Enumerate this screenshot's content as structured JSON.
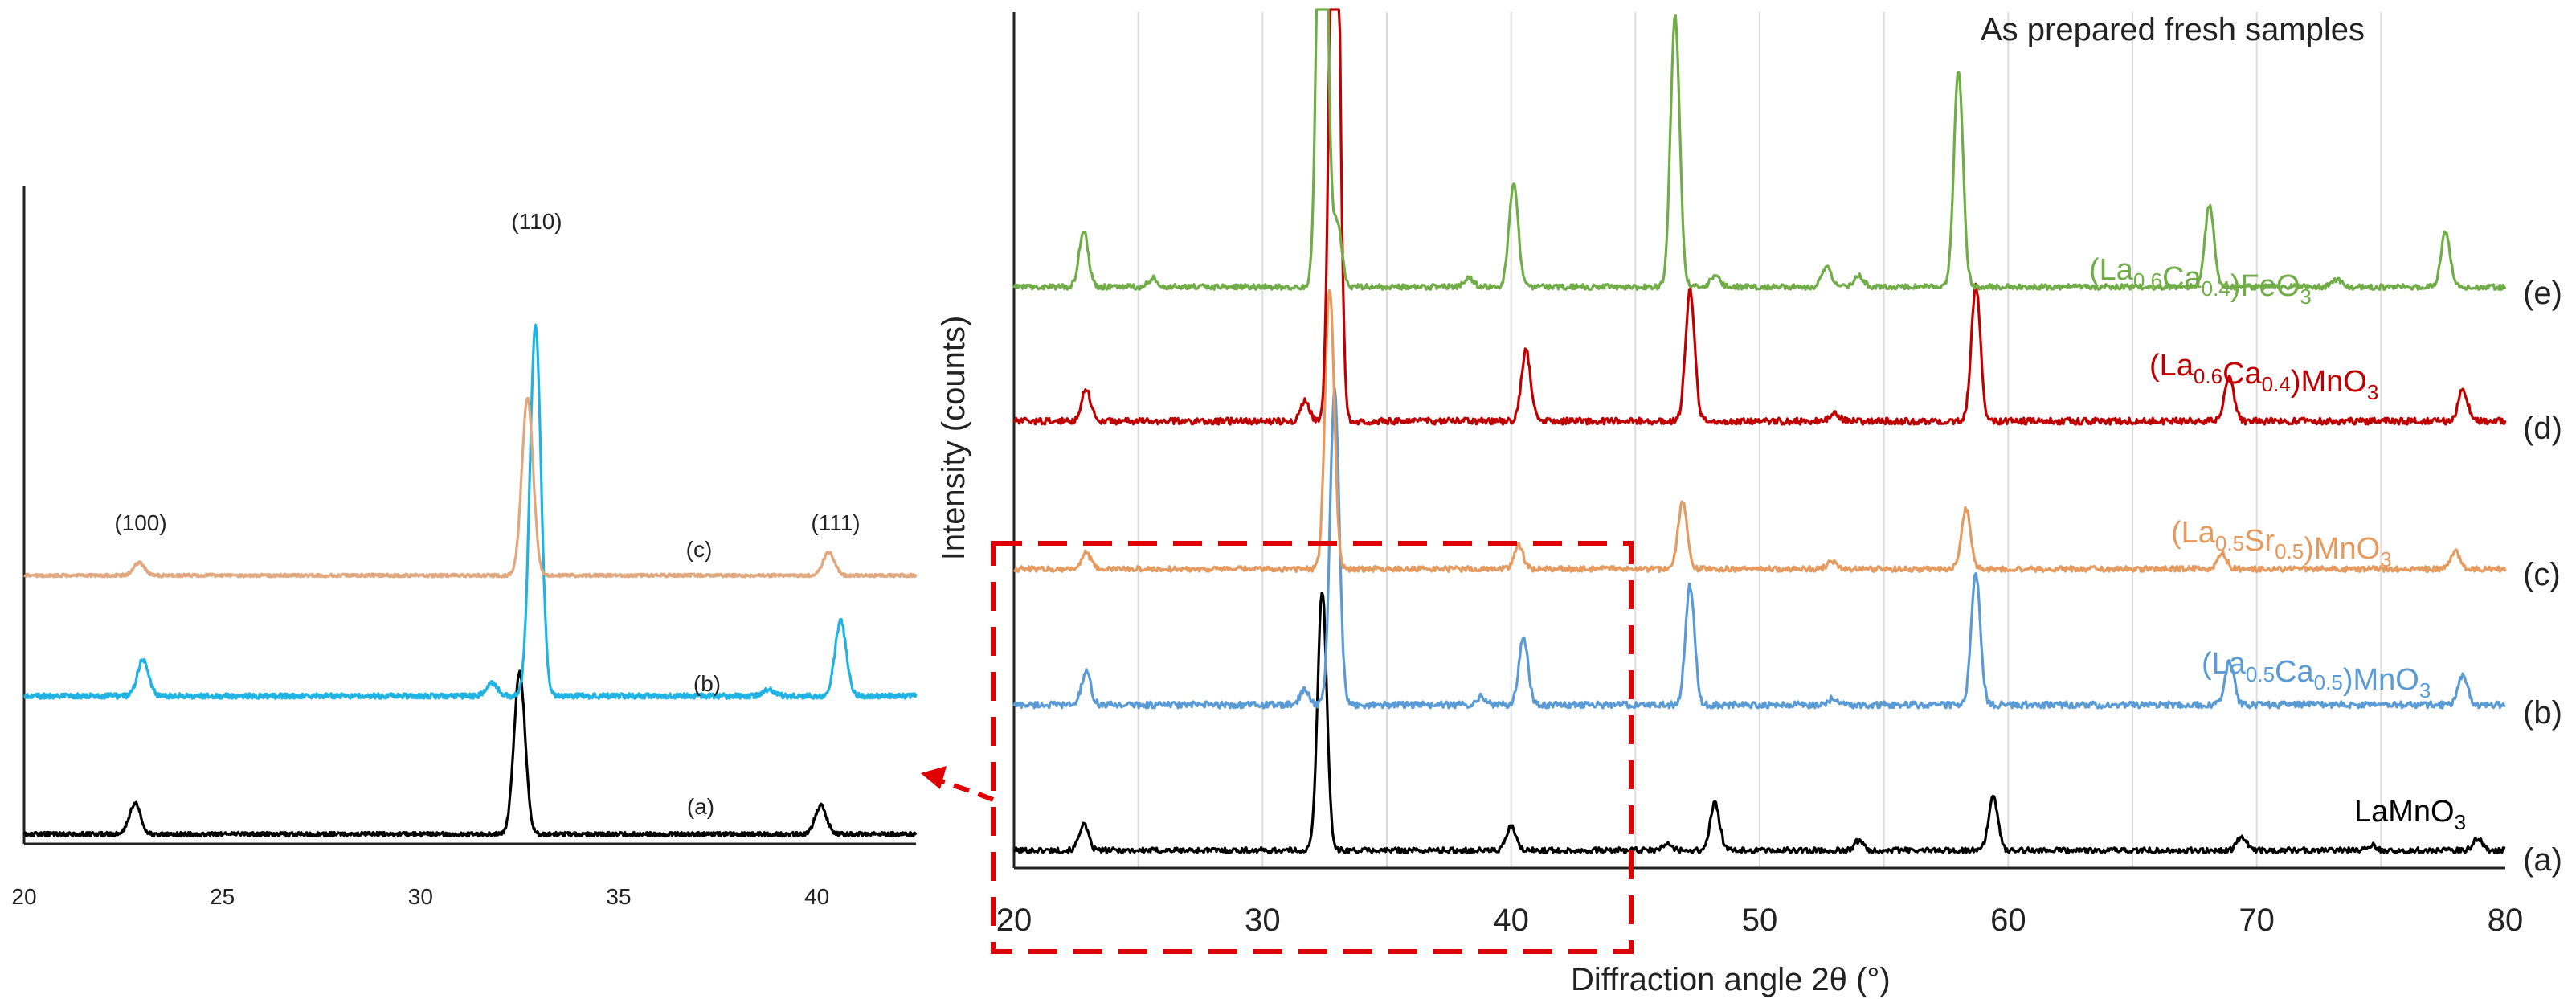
{
  "chart_data": [
    {
      "id": "main",
      "type": "line",
      "title": "As prepared fresh samples",
      "xlabel": "Diffraction angle 2θ (°)",
      "ylabel": "Intensity (counts)",
      "xlim": [
        20,
        80
      ],
      "xticks": [
        "20",
        "30",
        "40",
        "50",
        "60",
        "70",
        "80"
      ],
      "grid": true,
      "series": [
        {
          "id": "a",
          "letter": "(a)",
          "name_parts": [
            {
              "t": "LaMnO"
            },
            {
              "t": "3",
              "sub": true
            }
          ],
          "color": "#000000",
          "offset": 0,
          "noise": 2.5,
          "peaks": [
            [
              22.8,
              24
            ],
            [
              32.4,
              240
            ],
            [
              40.0,
              22
            ],
            [
              46.3,
              6
            ],
            [
              48.2,
              44
            ],
            [
              54.0,
              9
            ],
            [
              59.4,
              50
            ],
            [
              69.4,
              13
            ],
            [
              74.6,
              5
            ],
            [
              78.9,
              11
            ]
          ]
        },
        {
          "id": "b",
          "letter": "(b)",
          "name_parts": [
            {
              "t": "(La"
            },
            {
              "t": "0.5",
              "sub": true
            },
            {
              "t": "Ca"
            },
            {
              "t": "0.5",
              "sub": true
            },
            {
              "t": ")MnO"
            },
            {
              "t": "3",
              "sub": true
            }
          ],
          "color": "#5b9bd5",
          "offset": 1,
          "noise": 3,
          "peaks": [
            [
              22.9,
              30
            ],
            [
              31.7,
              14
            ],
            [
              32.9,
              290
            ],
            [
              38.8,
              8
            ],
            [
              40.5,
              62
            ],
            [
              47.2,
              110
            ],
            [
              53.0,
              7
            ],
            [
              58.7,
              120
            ],
            [
              68.9,
              40
            ],
            [
              78.3,
              28
            ]
          ]
        },
        {
          "id": "c",
          "letter": "(c)",
          "name_parts": [
            {
              "t": "(La"
            },
            {
              "t": "0.5",
              "sub": true
            },
            {
              "t": "Sr"
            },
            {
              "t": "0.5",
              "sub": true
            },
            {
              "t": ")MnO"
            },
            {
              "t": "3",
              "sub": true
            }
          ],
          "color": "#e59a5f",
          "offset": 2,
          "noise": 2.5,
          "peaks": [
            [
              22.9,
              15
            ],
            [
              32.7,
              260
            ],
            [
              40.3,
              22
            ],
            [
              46.9,
              62
            ],
            [
              52.9,
              7
            ],
            [
              58.3,
              55
            ],
            [
              68.6,
              15
            ],
            [
              78.0,
              16
            ]
          ]
        },
        {
          "id": "d",
          "letter": "(d)",
          "name_parts": [
            {
              "t": "(La"
            },
            {
              "t": "0.6",
              "sub": true
            },
            {
              "t": "Ca"
            },
            {
              "t": "0.4",
              "sub": true
            },
            {
              "t": ")MnO"
            },
            {
              "t": "3",
              "sub": true
            }
          ],
          "color": "#c00000",
          "offset": 3,
          "noise": 3,
          "peaks": [
            [
              22.9,
              30
            ],
            [
              31.7,
              18
            ],
            [
              32.9,
              700
            ],
            [
              40.6,
              65
            ],
            [
              47.2,
              120
            ],
            [
              53.0,
              8
            ],
            [
              58.7,
              125
            ],
            [
              68.9,
              42
            ],
            [
              78.3,
              30
            ]
          ]
        },
        {
          "id": "e",
          "letter": "(e)",
          "name_parts": [
            {
              "t": "(La"
            },
            {
              "t": "0.6",
              "sub": true
            },
            {
              "t": "Ca"
            },
            {
              "t": "0.4",
              "sub": true
            },
            {
              "t": ")FeO"
            },
            {
              "t": "3",
              "sub": true
            }
          ],
          "color": "#70ad47",
          "offset": 4,
          "noise": 2.5,
          "peaks": [
            [
              22.8,
              52
            ],
            [
              25.6,
              8
            ],
            [
              32.4,
              600
            ],
            [
              33.0,
              60
            ],
            [
              38.3,
              8
            ],
            [
              40.1,
              95
            ],
            [
              46.6,
              250
            ],
            [
              48.2,
              10
            ],
            [
              52.7,
              18
            ],
            [
              54.0,
              10
            ],
            [
              58.0,
              200
            ],
            [
              68.1,
              75
            ],
            [
              73.2,
              7
            ],
            [
              77.6,
              50
            ]
          ]
        }
      ]
    },
    {
      "id": "inset",
      "type": "line",
      "title": "",
      "xlabel": "",
      "ylabel": "",
      "xlim": [
        20,
        42.5
      ],
      "xticks": [
        "20",
        "25",
        "30",
        "35",
        "40"
      ],
      "grid": false,
      "annotations": [
        "(100)",
        "(110)",
        "(111)"
      ],
      "series": [
        {
          "id": "a",
          "letter": "(a)",
          "color": "#000000",
          "offset": 0,
          "noise": 2,
          "peaks": [
            [
              22.8,
              30
            ],
            [
              32.5,
              155
            ],
            [
              40.1,
              28
            ]
          ]
        },
        {
          "id": "b",
          "letter": "(b)",
          "color": "#1fb3e4",
          "offset": 1,
          "noise": 2.5,
          "peaks": [
            [
              23.0,
              35
            ],
            [
              31.8,
              12
            ],
            [
              32.9,
              355
            ],
            [
              38.8,
              6
            ],
            [
              40.6,
              72
            ]
          ]
        },
        {
          "id": "c",
          "letter": "(c)",
          "color": "#e2a77c",
          "offset": 2,
          "noise": 1.5,
          "peaks": [
            [
              22.9,
              12
            ],
            [
              32.7,
              170
            ],
            [
              40.3,
              22
            ]
          ]
        }
      ]
    }
  ]
}
